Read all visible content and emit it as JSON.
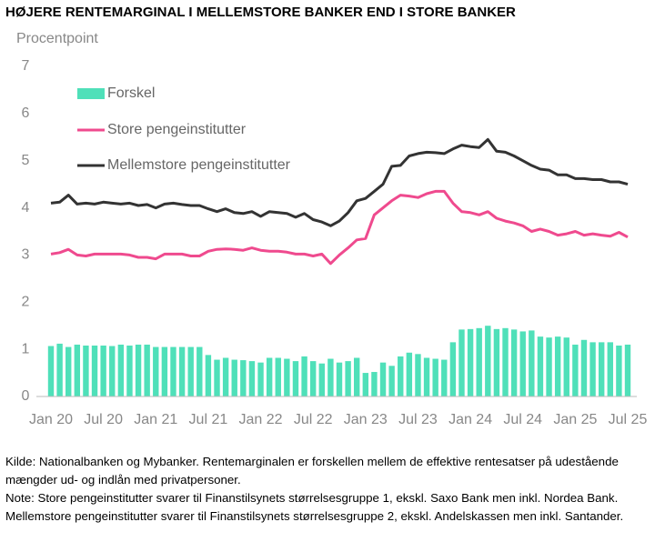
{
  "chart_data": {
    "type": "bar_line",
    "title": "HØJERE RENTEMARGINAL I MELLEMSTORE BANKER END I STORE BANKER",
    "ylabel": "Procentpoint",
    "categories": [
      "Jan 20",
      null,
      null,
      null,
      null,
      null,
      "Jul 20",
      null,
      null,
      null,
      null,
      null,
      "Jan 21",
      null,
      null,
      null,
      null,
      null,
      "Jul 21",
      null,
      null,
      null,
      null,
      null,
      "Jan 22",
      null,
      null,
      null,
      null,
      null,
      "Jul 22",
      null,
      null,
      null,
      null,
      null,
      "Jan 23",
      null,
      null,
      null,
      null,
      null,
      "Jul 23",
      null,
      null,
      null,
      null,
      null,
      "Jan 24",
      null,
      null,
      null,
      null,
      null,
      "Jul 24",
      null,
      null,
      null,
      null,
      null,
      "Jan 25",
      null,
      null,
      null,
      null,
      null,
      "Jul 25"
    ],
    "series": [
      {
        "name": "Forskel",
        "kind": "bar",
        "color": "#4fe0b9",
        "values": [
          1.07,
          1.12,
          1.05,
          1.1,
          1.08,
          1.08,
          1.08,
          1.07,
          1.1,
          1.08,
          1.1,
          1.1,
          1.05,
          1.05,
          1.05,
          1.05,
          1.05,
          1.05,
          0.88,
          0.78,
          0.82,
          0.78,
          0.77,
          0.75,
          0.72,
          0.82,
          0.82,
          0.8,
          0.75,
          0.85,
          0.75,
          0.7,
          0.8,
          0.72,
          0.75,
          0.82,
          0.5,
          0.52,
          0.72,
          0.65,
          0.85,
          0.93,
          0.9,
          0.82,
          0.8,
          0.78,
          1.15,
          1.42,
          1.43,
          1.45,
          1.5,
          1.43,
          1.45,
          1.42,
          1.38,
          1.4,
          1.27,
          1.25,
          1.27,
          1.25,
          1.1,
          1.2,
          1.15,
          1.15,
          1.15,
          1.08,
          1.1
        ]
      },
      {
        "name": "Store pengeinstitutter",
        "kind": "line",
        "color": "#ef4a8e",
        "values": [
          3.02,
          3.05,
          3.12,
          3.0,
          2.98,
          3.02,
          3.02,
          3.02,
          3.02,
          3.0,
          2.95,
          2.95,
          2.92,
          3.02,
          3.02,
          3.02,
          2.98,
          2.98,
          3.08,
          3.12,
          3.13,
          3.12,
          3.1,
          3.15,
          3.1,
          3.08,
          3.08,
          3.06,
          3.02,
          3.02,
          2.98,
          3.02,
          2.82,
          3.0,
          3.15,
          3.32,
          3.35,
          3.85,
          4.0,
          4.15,
          4.27,
          4.25,
          4.22,
          4.3,
          4.35,
          4.35,
          4.1,
          3.92,
          3.9,
          3.85,
          3.92,
          3.78,
          3.72,
          3.68,
          3.62,
          3.5,
          3.55,
          3.5,
          3.42,
          3.45,
          3.5,
          3.42,
          3.45,
          3.42,
          3.4,
          3.48,
          3.38
        ]
      },
      {
        "name": "Mellemstore pengeinstitutter",
        "kind": "line",
        "color": "#333333",
        "values": [
          4.1,
          4.12,
          4.27,
          4.08,
          4.1,
          4.08,
          4.12,
          4.1,
          4.08,
          4.1,
          4.05,
          4.07,
          4.0,
          4.08,
          4.1,
          4.07,
          4.05,
          4.05,
          3.98,
          3.92,
          3.98,
          3.9,
          3.88,
          3.92,
          3.82,
          3.92,
          3.9,
          3.88,
          3.8,
          3.88,
          3.75,
          3.7,
          3.62,
          3.72,
          3.9,
          4.15,
          4.2,
          4.35,
          4.5,
          4.88,
          4.9,
          5.1,
          5.15,
          5.18,
          5.17,
          5.15,
          5.25,
          5.33,
          5.3,
          5.28,
          5.45,
          5.2,
          5.18,
          5.1,
          5.0,
          4.9,
          4.82,
          4.8,
          4.7,
          4.7,
          4.62,
          4.62,
          4.6,
          4.6,
          4.55,
          4.55,
          4.5
        ]
      }
    ],
    "ylim": [
      0,
      7
    ],
    "yticks": [
      0,
      1,
      2,
      3,
      4,
      5,
      6,
      7
    ],
    "grid": false,
    "legend": "upper left",
    "source": "Kilde: Nationalbanken og Mybanker. Rentemarginalen er forskellen mellem de effektive rentesatser på udestående mængder ud- og indlån med privatpersoner.",
    "note": "Note: Store pengeinstitutter svarer til Finanstilsynets størrelsesgruppe 1, ekskl. Saxo Bank men inkl. Nordea Bank. Mellemstore pengeinstitutter svarer til Finanstilsynets størrelsesgruppe 2, ekskl. Andelskassen men inkl. Santander."
  }
}
